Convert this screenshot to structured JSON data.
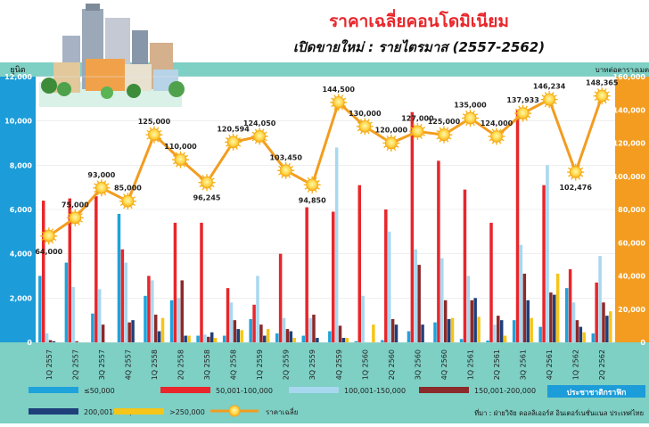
{
  "header": {
    "title": "ราคาเฉลี่ยคอนโดมิเนียม",
    "subtitle": "เปิดขายใหม่ : รายไตรมาส (2557-2562)"
  },
  "footer": {
    "brand": "ประชาชาติกราฟิก",
    "source": "ที่มา : ฝ่ายวิจัย คอลลิเออร์ส อินเตอร์เนชั่นแนล ประเทศไทย"
  },
  "colors": {
    "background": "#7ecfc4",
    "s_le50k": "#1ea3dc",
    "s_50_100k": "#e8262b",
    "s_100_150k": "#a8d8f0",
    "s_150_200k": "#8b2a2a",
    "s_200_250k": "#1f3f7a",
    "s_gt250k": "#f5c518",
    "price_line": "#f39c1f",
    "left_axis": "#1c9cd8",
    "right_axis": "#f39c1f"
  },
  "chart_data": {
    "type": "bar",
    "title": "ราคาเฉลี่ยคอนโดมิเนียม",
    "subtitle": "เปิดขายใหม่ : รายไตรมาส (2557-2562)",
    "ylabel": "ยูนิต",
    "y2label": "บาทต่อตารางเมตร",
    "ylim": [
      0,
      12000
    ],
    "y2lim": [
      0,
      160000
    ],
    "yticks": [
      "0",
      "2,000",
      "4,000",
      "6,000",
      "8,000",
      "10,000",
      "12,000"
    ],
    "y2ticks": [
      "0",
      "20,000",
      "40,000",
      "60,000",
      "80,000",
      "100,000",
      "120,000",
      "140,000",
      "160,000"
    ],
    "categories": [
      "1Q 2557",
      "2Q 2557",
      "3Q 2557",
      "4Q 2557",
      "1Q 2558",
      "2Q 2558",
      "3Q 2558",
      "4Q 2558",
      "1Q 2559",
      "2Q 2559",
      "3Q 2559",
      "4Q 2559",
      "1Q 2560",
      "2Q 2560",
      "3Q 2560",
      "4Q 2560",
      "1Q 2561",
      "2Q 2561",
      "3Q 2561",
      "4Q 2561",
      "1Q 2562",
      "2Q 2562"
    ],
    "series": [
      {
        "name": "≤50,000",
        "color": "#1ea3dc",
        "values": [
          3000,
          3600,
          1300,
          5800,
          2100,
          1900,
          300,
          300,
          1050,
          400,
          300,
          500,
          50,
          100,
          500,
          900,
          150,
          80,
          1000,
          700,
          2450,
          400
        ]
      },
      {
        "name": "50,001-100,000",
        "color": "#e8262b",
        "values": [
          6400,
          6500,
          6600,
          4200,
          3000,
          5400,
          5400,
          2450,
          1700,
          4000,
          6100,
          5900,
          7100,
          6000,
          10400,
          8200,
          6900,
          5400,
          10500,
          7100,
          3300,
          2700
        ]
      },
      {
        "name": "100,001-150,000",
        "color": "#a8d8f0",
        "values": [
          400,
          2500,
          2400,
          3600,
          2800,
          2000,
          350,
          1800,
          3000,
          1100,
          1100,
          8800,
          2100,
          5000,
          4200,
          3800,
          3000,
          800,
          4400,
          8000,
          1800,
          3900
        ]
      },
      {
        "name": "150,001-200,000",
        "color": "#8b2a2a",
        "values": [
          100,
          50,
          800,
          900,
          1250,
          2800,
          250,
          1000,
          800,
          600,
          1250,
          750,
          0,
          1050,
          3500,
          1900,
          1900,
          1200,
          3100,
          2250,
          1000,
          1800
        ]
      },
      {
        "name": "200,001-250,000",
        "color": "#1f3f7a",
        "values": [
          50,
          0,
          0,
          1000,
          500,
          300,
          450,
          600,
          300,
          500,
          200,
          200,
          0,
          800,
          800,
          1050,
          2000,
          1000,
          1900,
          2150,
          700,
          1200
        ]
      },
      {
        "name": ">250,000",
        "color": "#f5c518",
        "values": [
          0,
          0,
          0,
          0,
          1100,
          300,
          200,
          550,
          600,
          200,
          0,
          200,
          800,
          0,
          0,
          1100,
          1150,
          300,
          1100,
          3100,
          450,
          1400
        ]
      }
    ],
    "line": {
      "name": "ราคาเฉลี่ย",
      "color": "#f39c1f",
      "values": [
        64000,
        75000,
        93000,
        85000,
        125000,
        110000,
        96245,
        120594,
        124050,
        103450,
        94850,
        144500,
        130000,
        120000,
        127000,
        125000,
        135000,
        124000,
        137933,
        146234,
        102476,
        148365
      ],
      "labels": [
        "64,000",
        "75,000",
        "93,000",
        "85,000",
        "125,000",
        "110,000",
        "96,245",
        "120,594",
        "124,050",
        "103,450",
        "94,850",
        "144,500",
        "130,000",
        "120,000",
        "127,000",
        "125,000",
        "135,000",
        "124,000",
        "137,933",
        "146,234",
        "102,476",
        "148,365"
      ]
    },
    "legend_position": "bottom"
  }
}
